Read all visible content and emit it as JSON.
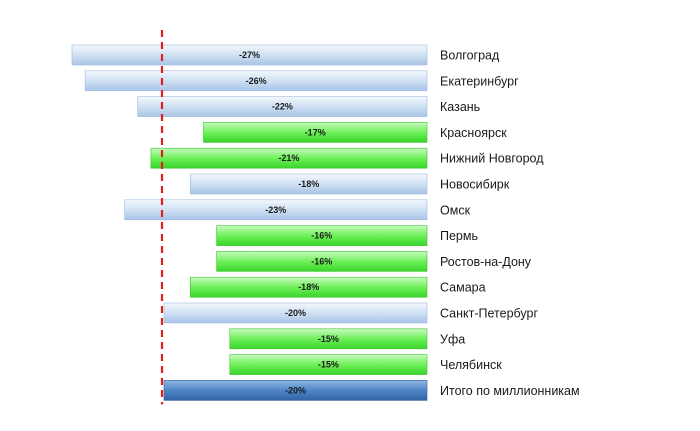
{
  "chart_data": {
    "type": "bar",
    "orientation": "horizontal",
    "value_format": "{v}%",
    "categories": [
      "Волгоград",
      "Екатеринбург",
      "Казань",
      "Красноярск",
      "Нижний Новгород",
      "Новосибирк",
      "Омск",
      "Пермь",
      "Ростов-на-Дону",
      "Самара",
      "Санкт-Петербург",
      "Уфа",
      "Челябинск",
      "Итого по миллионникам"
    ],
    "values": [
      -27,
      -26,
      -22,
      -17,
      -21,
      -18,
      -23,
      -16,
      -16,
      -18,
      -20,
      -15,
      -15,
      -20
    ],
    "bar_styles": [
      "blue",
      "blue",
      "blue",
      "green",
      "green",
      "blue",
      "blue",
      "green",
      "green",
      "green",
      "blue",
      "green",
      "green",
      "total"
    ],
    "reference_line": {
      "value": -20,
      "style": "dashed",
      "color": "#e02020"
    },
    "colors": {
      "blue": "#cfe0f3",
      "green": "#6ff05a",
      "total": "#4f86c6"
    },
    "xlim": [
      -27,
      0
    ],
    "grid": false,
    "legend": "none"
  }
}
